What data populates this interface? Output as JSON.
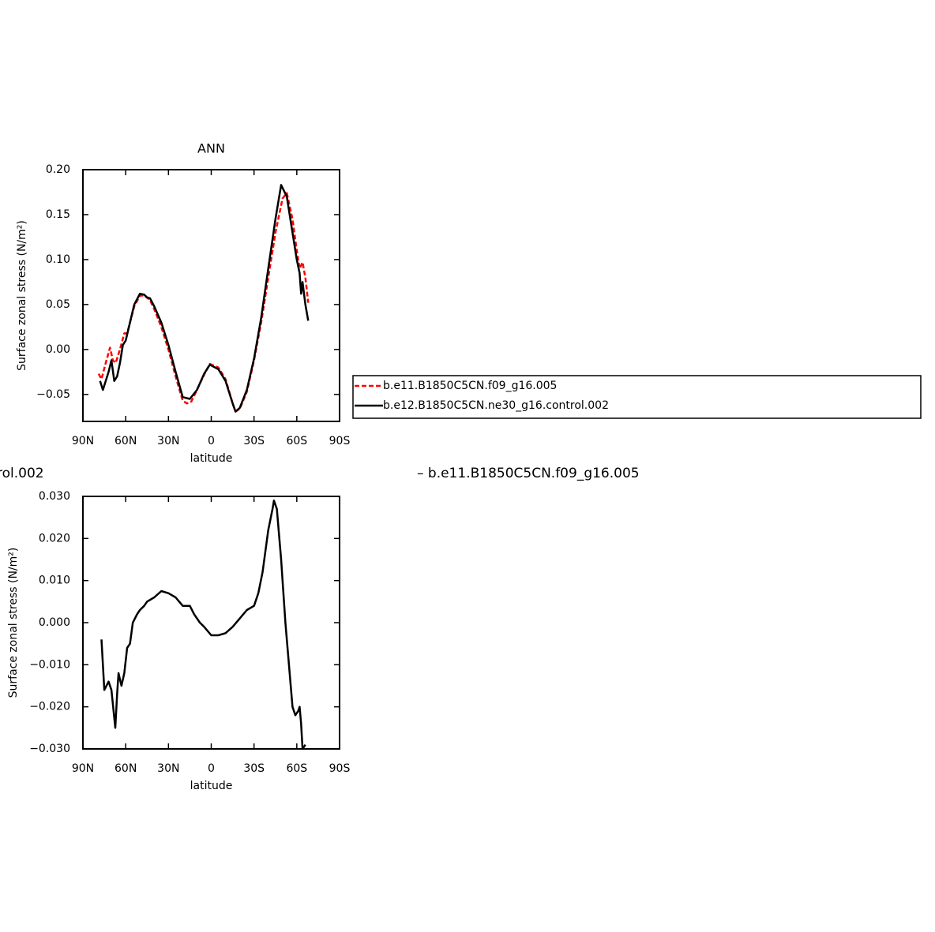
{
  "chart_data": [
    {
      "type": "line",
      "title": "ANN",
      "xlabel": "latitude",
      "ylabel": "Surface zonal stress (N/m²)",
      "xlim": [
        90,
        -90
      ],
      "xticks": [
        {
          "value": 90,
          "label": "90N"
        },
        {
          "value": 60,
          "label": "60N"
        },
        {
          "value": 30,
          "label": "30N"
        },
        0,
        {
          "value": -30,
          "label": "30S"
        },
        {
          "value": -60,
          "label": "60S"
        },
        {
          "value": -90,
          "label": "90S"
        }
      ],
      "ylim": [
        -0.08,
        0.2
      ],
      "yticks": [
        {
          "value": 0.2,
          "label": "0.20"
        },
        {
          "value": 0.15,
          "label": "0.15"
        },
        {
          "value": 0.1,
          "label": "0.10"
        },
        {
          "value": 0.05,
          "label": "0.05"
        },
        {
          "value": 0,
          "label": "0.00"
        },
        {
          "value": -0.05,
          "label": "−0.05"
        }
      ],
      "legend": "right",
      "series": [
        {
          "name": "b.e11.B1850C5CN.f09_g16.005",
          "color": "#ff0000",
          "dashed": true,
          "x": [
            79,
            77,
            74,
            71,
            69,
            67,
            64,
            61,
            59,
            57,
            54,
            50,
            47,
            43,
            40,
            35,
            30,
            25,
            20,
            17,
            14,
            10,
            5,
            1,
            -5,
            -10,
            -15,
            -17,
            -20,
            -25,
            -30,
            -35,
            -40,
            -45,
            -50,
            -53,
            -57,
            -60,
            -62,
            -64,
            -66,
            -68
          ],
          "values": [
            -0.027,
            -0.033,
            -0.015,
            0.002,
            -0.012,
            -0.015,
            0.0,
            0.018,
            0.018,
            0.03,
            0.048,
            0.06,
            0.06,
            0.055,
            0.045,
            0.025,
            0.0,
            -0.03,
            -0.057,
            -0.06,
            -0.058,
            -0.045,
            -0.028,
            -0.016,
            -0.02,
            -0.033,
            -0.06,
            -0.069,
            -0.066,
            -0.047,
            -0.012,
            0.03,
            0.08,
            0.13,
            0.168,
            0.174,
            0.145,
            0.11,
            0.09,
            0.097,
            0.08,
            0.052
          ]
        },
        {
          "name": "b.e12.B1850C5CN.ne30_g16.control.002",
          "color": "#000000",
          "dashed": false,
          "x": [
            78,
            76,
            72,
            70,
            68,
            66,
            64,
            62,
            60,
            57,
            54,
            50,
            47,
            45,
            43,
            40,
            35,
            30,
            25,
            20,
            15,
            10,
            5,
            1,
            -5,
            -10,
            -15,
            -17,
            -20,
            -25,
            -30,
            -35,
            -40,
            -45,
            -49,
            -53,
            -57,
            -60,
            -62,
            -63,
            -64,
            -66,
            -68
          ],
          "values": [
            -0.035,
            -0.045,
            -0.025,
            -0.012,
            -0.035,
            -0.03,
            -0.015,
            0.005,
            0.01,
            0.03,
            0.05,
            0.062,
            0.061,
            0.058,
            0.057,
            0.048,
            0.03,
            0.005,
            -0.025,
            -0.053,
            -0.055,
            -0.045,
            -0.027,
            -0.017,
            -0.022,
            -0.035,
            -0.06,
            -0.069,
            -0.065,
            -0.045,
            -0.01,
            0.035,
            0.09,
            0.145,
            0.183,
            0.17,
            0.13,
            0.1,
            0.085,
            0.062,
            0.075,
            0.05,
            0.032
          ]
        }
      ]
    },
    {
      "type": "line",
      "xlabel": "latitude",
      "ylabel": "Surface zonal stress (N/m²)",
      "annotations": [
        "rol.002",
        "– b.e11.B1850C5CN.f09_g16.005"
      ],
      "xlim": [
        90,
        -90
      ],
      "xticks": [
        {
          "value": 90,
          "label": "90N"
        },
        {
          "value": 60,
          "label": "60N"
        },
        {
          "value": 30,
          "label": "30N"
        },
        0,
        {
          "value": -30,
          "label": "30S"
        },
        {
          "value": -60,
          "label": "60S"
        },
        {
          "value": -90,
          "label": "90S"
        }
      ],
      "ylim": [
        -0.03,
        0.03
      ],
      "yticks": [
        {
          "value": 0.03,
          "label": "0.030"
        },
        {
          "value": 0.02,
          "label": "0.020"
        },
        {
          "value": 0.01,
          "label": "0.010"
        },
        {
          "value": 0,
          "label": "0.000"
        },
        {
          "value": -0.01,
          "label": "−0.010"
        },
        {
          "value": -0.02,
          "label": "−0.020"
        },
        {
          "value": -0.03,
          "label": "−0.030"
        }
      ],
      "series": [
        {
          "color": "#000000",
          "dashed": false,
          "x": [
            77,
            75,
            72,
            70,
            67.3,
            66,
            65,
            63,
            61,
            59,
            57,
            55,
            52,
            50,
            47,
            45,
            40,
            35,
            30,
            25,
            20,
            15,
            12,
            8,
            5,
            0,
            -5,
            -10,
            -15,
            -20,
            -25,
            -30,
            -33,
            -36,
            -40,
            -43,
            -44,
            -46,
            -49,
            -52,
            -55,
            -57,
            -59,
            -61,
            -62,
            -63,
            -64,
            -66
          ],
          "values": [
            -0.004,
            -0.016,
            -0.014,
            -0.016,
            -0.025,
            -0.017,
            -0.012,
            -0.015,
            -0.012,
            -0.006,
            -0.005,
            0.0,
            0.002,
            0.003,
            0.004,
            0.005,
            0.006,
            0.0075,
            0.007,
            0.006,
            0.004,
            0.004,
            0.002,
            0.0,
            -0.001,
            -0.003,
            -0.003,
            -0.0025,
            -0.001,
            0.001,
            0.003,
            0.004,
            0.007,
            0.012,
            0.022,
            0.027,
            0.029,
            0.027,
            0.015,
            0.0,
            -0.012,
            -0.02,
            -0.022,
            -0.021,
            -0.02,
            -0.024,
            -0.03,
            -0.029
          ]
        }
      ]
    }
  ]
}
